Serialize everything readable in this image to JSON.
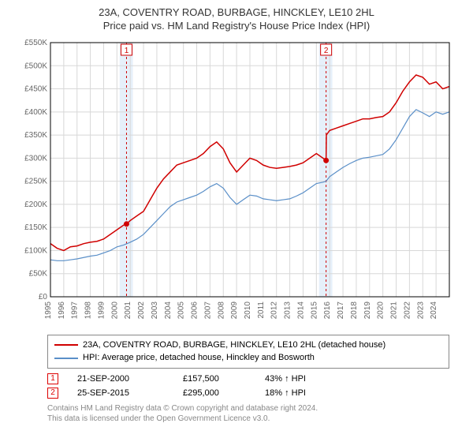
{
  "title_main": "23A, COVENTRY ROAD, BURBAGE, HINCKLEY, LE10 2HL",
  "title_sub": "Price paid vs. HM Land Registry's House Price Index (HPI)",
  "chart": {
    "type": "line",
    "background_color": "#ffffff",
    "plot_border_color": "#000000",
    "grid_color": "#d8d8d8",
    "title_fontsize": 13,
    "axis_label_fontsize": 10,
    "axis_label_color": "#666666",
    "y_axis": {
      "min": 0,
      "max": 550000,
      "tick_step": 50000,
      "tick_labels": [
        "£0",
        "£50K",
        "£100K",
        "£150K",
        "£200K",
        "£250K",
        "£300K",
        "£350K",
        "£400K",
        "£450K",
        "£500K",
        "£550K"
      ]
    },
    "x_axis": {
      "min": 1995,
      "max": 2025,
      "tick_step": 1,
      "tick_labels": [
        "1995",
        "1996",
        "1997",
        "1998",
        "1999",
        "2000",
        "2001",
        "2002",
        "2003",
        "2004",
        "2005",
        "2006",
        "2007",
        "2008",
        "2009",
        "2010",
        "2011",
        "2012",
        "2013",
        "2014",
        "2015",
        "2016",
        "2017",
        "2018",
        "2019",
        "2020",
        "2021",
        "2022",
        "2023",
        "2024"
      ],
      "label_rotation": -90
    },
    "shaded_bands": [
      {
        "x_from": 2000.2,
        "x_to": 2001.2,
        "color": "#e6f0fa"
      },
      {
        "x_from": 2015.2,
        "x_to": 2016.2,
        "color": "#e6f0fa"
      }
    ],
    "marker_lines": [
      {
        "x": 2000.72,
        "color": "#d00000",
        "dash": "3,3",
        "label": "1"
      },
      {
        "x": 2015.73,
        "color": "#d00000",
        "dash": "3,3",
        "label": "2"
      }
    ],
    "series": [
      {
        "name": "price_paid",
        "label": "23A, COVENTRY ROAD, BURBAGE, HINCKLEY, LE10 2HL (detached house)",
        "color": "#d00000",
        "line_width": 1.5,
        "data": [
          [
            1995,
            115000
          ],
          [
            1995.5,
            105000
          ],
          [
            1996,
            100000
          ],
          [
            1996.5,
            108000
          ],
          [
            1997,
            110000
          ],
          [
            1997.5,
            115000
          ],
          [
            1998,
            118000
          ],
          [
            1998.5,
            120000
          ],
          [
            1999,
            125000
          ],
          [
            1999.5,
            135000
          ],
          [
            2000,
            145000
          ],
          [
            2000.5,
            155000
          ],
          [
            2000.72,
            157500
          ],
          [
            2001,
            165000
          ],
          [
            2001.5,
            175000
          ],
          [
            2002,
            185000
          ],
          [
            2002.5,
            210000
          ],
          [
            2003,
            235000
          ],
          [
            2003.5,
            255000
          ],
          [
            2004,
            270000
          ],
          [
            2004.5,
            285000
          ],
          [
            2005,
            290000
          ],
          [
            2005.5,
            295000
          ],
          [
            2006,
            300000
          ],
          [
            2006.5,
            310000
          ],
          [
            2007,
            325000
          ],
          [
            2007.5,
            335000
          ],
          [
            2008,
            320000
          ],
          [
            2008.5,
            290000
          ],
          [
            2009,
            270000
          ],
          [
            2009.5,
            285000
          ],
          [
            2010,
            300000
          ],
          [
            2010.5,
            295000
          ],
          [
            2011,
            285000
          ],
          [
            2011.5,
            280000
          ],
          [
            2012,
            278000
          ],
          [
            2012.5,
            280000
          ],
          [
            2013,
            282000
          ],
          [
            2013.5,
            285000
          ],
          [
            2014,
            290000
          ],
          [
            2014.5,
            300000
          ],
          [
            2015,
            310000
          ],
          [
            2015.5,
            300000
          ],
          [
            2015.73,
            295000
          ],
          [
            2015.75,
            350000
          ],
          [
            2016,
            360000
          ],
          [
            2016.5,
            365000
          ],
          [
            2017,
            370000
          ],
          [
            2017.5,
            375000
          ],
          [
            2018,
            380000
          ],
          [
            2018.5,
            385000
          ],
          [
            2019,
            385000
          ],
          [
            2019.5,
            388000
          ],
          [
            2020,
            390000
          ],
          [
            2020.5,
            400000
          ],
          [
            2021,
            420000
          ],
          [
            2021.5,
            445000
          ],
          [
            2022,
            465000
          ],
          [
            2022.5,
            480000
          ],
          [
            2023,
            475000
          ],
          [
            2023.5,
            460000
          ],
          [
            2024,
            465000
          ],
          [
            2024.5,
            450000
          ],
          [
            2025,
            455000
          ]
        ]
      },
      {
        "name": "hpi",
        "label": "HPI: Average price, detached house, Hinckley and Bosworth",
        "color": "#5a8fc8",
        "line_width": 1.2,
        "data": [
          [
            1995,
            80000
          ],
          [
            1995.5,
            78000
          ],
          [
            1996,
            78000
          ],
          [
            1996.5,
            80000
          ],
          [
            1997,
            82000
          ],
          [
            1997.5,
            85000
          ],
          [
            1998,
            88000
          ],
          [
            1998.5,
            90000
          ],
          [
            1999,
            95000
          ],
          [
            1999.5,
            100000
          ],
          [
            2000,
            108000
          ],
          [
            2000.5,
            112000
          ],
          [
            2001,
            118000
          ],
          [
            2001.5,
            125000
          ],
          [
            2002,
            135000
          ],
          [
            2002.5,
            150000
          ],
          [
            2003,
            165000
          ],
          [
            2003.5,
            180000
          ],
          [
            2004,
            195000
          ],
          [
            2004.5,
            205000
          ],
          [
            2005,
            210000
          ],
          [
            2005.5,
            215000
          ],
          [
            2006,
            220000
          ],
          [
            2006.5,
            228000
          ],
          [
            2007,
            238000
          ],
          [
            2007.5,
            245000
          ],
          [
            2008,
            235000
          ],
          [
            2008.5,
            215000
          ],
          [
            2009,
            200000
          ],
          [
            2009.5,
            210000
          ],
          [
            2010,
            220000
          ],
          [
            2010.5,
            218000
          ],
          [
            2011,
            212000
          ],
          [
            2011.5,
            210000
          ],
          [
            2012,
            208000
          ],
          [
            2012.5,
            210000
          ],
          [
            2013,
            212000
          ],
          [
            2013.5,
            218000
          ],
          [
            2014,
            225000
          ],
          [
            2014.5,
            235000
          ],
          [
            2015,
            245000
          ],
          [
            2015.5,
            248000
          ],
          [
            2015.73,
            250000
          ],
          [
            2016,
            260000
          ],
          [
            2016.5,
            270000
          ],
          [
            2017,
            280000
          ],
          [
            2017.5,
            288000
          ],
          [
            2018,
            295000
          ],
          [
            2018.5,
            300000
          ],
          [
            2019,
            302000
          ],
          [
            2019.5,
            305000
          ],
          [
            2020,
            308000
          ],
          [
            2020.5,
            320000
          ],
          [
            2021,
            340000
          ],
          [
            2021.5,
            365000
          ],
          [
            2022,
            390000
          ],
          [
            2022.5,
            405000
          ],
          [
            2023,
            398000
          ],
          [
            2023.5,
            390000
          ],
          [
            2024,
            400000
          ],
          [
            2024.5,
            395000
          ],
          [
            2025,
            400000
          ]
        ]
      }
    ],
    "sale_markers": [
      {
        "x": 2000.72,
        "y": 157500,
        "color": "#d00000"
      },
      {
        "x": 2015.73,
        "y": 295000,
        "color": "#d00000"
      }
    ]
  },
  "legend": {
    "border_color": "#888888",
    "fontsize": 11,
    "items": [
      {
        "color": "#d00000",
        "label": "23A, COVENTRY ROAD, BURBAGE, HINCKLEY, LE10 2HL (detached house)"
      },
      {
        "color": "#5a8fc8",
        "label": "HPI: Average price, detached house, Hinckley and Bosworth"
      }
    ]
  },
  "marker_rows": [
    {
      "num": "1",
      "date": "21-SEP-2000",
      "price": "£157,500",
      "delta": "43% ↑ HPI"
    },
    {
      "num": "2",
      "date": "25-SEP-2015",
      "price": "£295,000",
      "delta": "18% ↑ HPI"
    }
  ],
  "footer_line1": "Contains HM Land Registry data © Crown copyright and database right 2024.",
  "footer_line2": "This data is licensed under the Open Government Licence v3.0."
}
